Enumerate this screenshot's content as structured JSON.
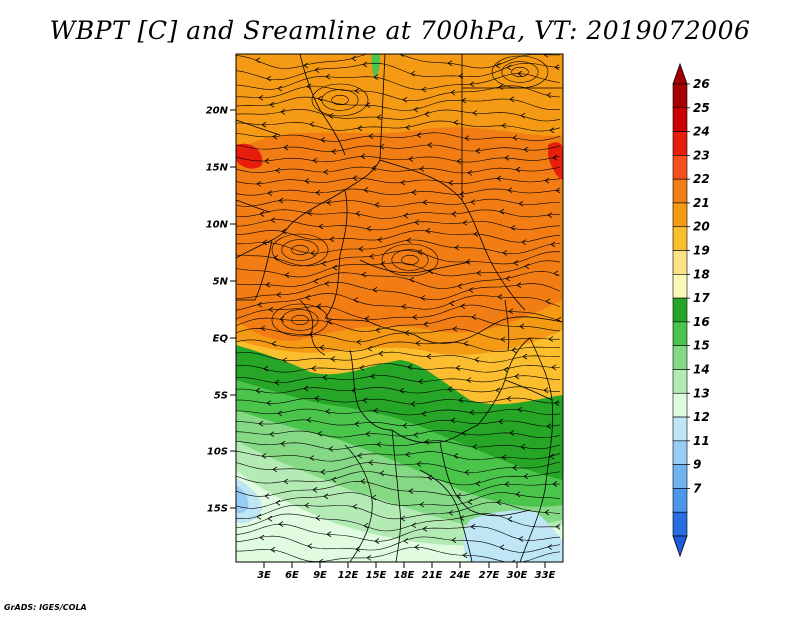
{
  "title": "WBPT [C] and Sreamline at 700hPa, VT: 2019072006",
  "credit": "GrADS: IGES/COLA",
  "map": {
    "lat_ticks": [
      "20N",
      "15N",
      "10N",
      "5N",
      "EQ",
      "5S",
      "10S",
      "15S"
    ],
    "lon_ticks": [
      "3E",
      "6E",
      "9E",
      "12E",
      "15E",
      "18E",
      "21E",
      "24E",
      "27E",
      "30E",
      "33E"
    ]
  },
  "colorbar": {
    "labels": [
      "26",
      "25",
      "24",
      "23",
      "22",
      "21",
      "20",
      "19",
      "18",
      "17",
      "16",
      "15",
      "14",
      "13",
      "12",
      "11",
      "9",
      "7"
    ],
    "colors": [
      "#a50000",
      "#cc0000",
      "#e81e0c",
      "#f5501a",
      "#f27d14",
      "#f59a14",
      "#fbbe2e",
      "#fde283",
      "#fbf7b8",
      "#26a526",
      "#4bc44b",
      "#85d985",
      "#b4ebb4",
      "#e1fbe1",
      "#bee6f5",
      "#96cdf5",
      "#6eb4f0",
      "#4b96eb",
      "#286ee1"
    ],
    "top_color": "#a50000",
    "bottom_color": "#1e5adc"
  },
  "field_colors": {
    "warm_main": "#f59a14",
    "warm_dark": "#f27d14",
    "warm_light": "#fbbe2e",
    "pale": "#fde283",
    "green_dark": "#26a526",
    "green_mid": "#4bc44b",
    "green_light": "#85d985",
    "green_pale": "#b4ebb4",
    "cyan_pale": "#e1fbe1",
    "blue_pale": "#bee6f5",
    "blue_light": "#96cdf5",
    "red": "#e81e0c"
  }
}
